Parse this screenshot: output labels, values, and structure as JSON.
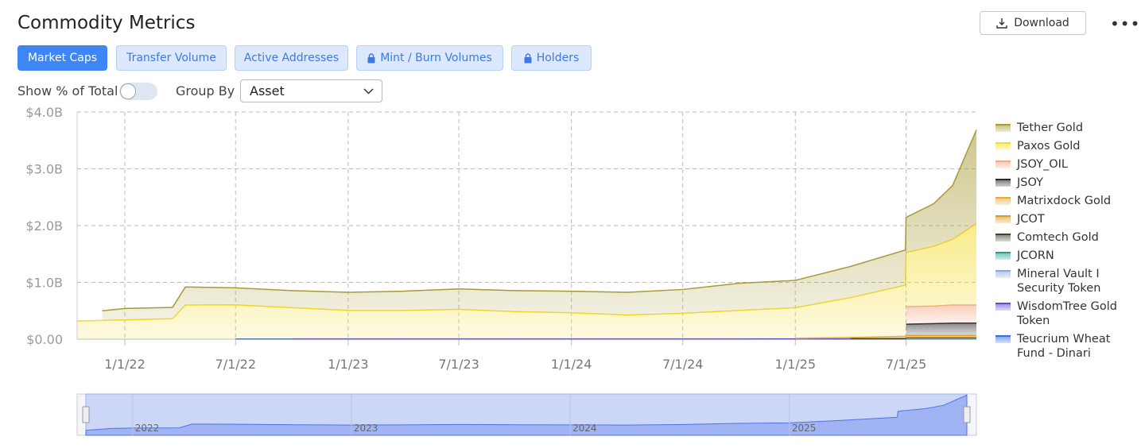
{
  "header": {
    "title": "Commodity Metrics",
    "download": "Download",
    "tabs": [
      "Market Caps",
      "Transfer Volume",
      "Active Addresses",
      "Mint / Burn Volumes",
      "Holders"
    ],
    "toggle_label": "Show % of Total",
    "group_by_label": "Group By",
    "group_by_value": "Asset"
  },
  "chart_data": {
    "type": "stacked_area",
    "x": [
      "2021-10-15",
      "2021-11-25",
      "2022-01-01",
      "2022-03-20",
      "2022-04-10",
      "2022-07-01",
      "2022-10-01",
      "2023-01-01",
      "2023-04-01",
      "2023-07-01",
      "2023-10-01",
      "2024-01-01",
      "2024-04-01",
      "2024-07-01",
      "2024-10-01",
      "2025-01-01",
      "2025-04-01",
      "2025-06-30",
      "2025-07-01",
      "2025-08-15",
      "2025-09-15",
      "2025-10-24"
    ],
    "xlim": [
      "2021-10-15",
      "2025-10-24"
    ],
    "xticks": [
      {
        "value": "2022-01-01",
        "label": "1/1/22"
      },
      {
        "value": "2022-07-01",
        "label": "7/1/22"
      },
      {
        "value": "2023-01-01",
        "label": "1/1/23"
      },
      {
        "value": "2023-07-01",
        "label": "7/1/23"
      },
      {
        "value": "2024-01-01",
        "label": "1/1/24"
      },
      {
        "value": "2024-07-01",
        "label": "7/1/24"
      },
      {
        "value": "2025-01-01",
        "label": "1/1/25"
      },
      {
        "value": "2025-07-01",
        "label": "7/1/25"
      }
    ],
    "ylim": [
      0,
      4
    ],
    "yticks": [
      {
        "value": 0,
        "label": "$0.00"
      },
      {
        "value": 1,
        "label": "$1.0B"
      },
      {
        "value": 2,
        "label": "$2.0B"
      },
      {
        "value": 3,
        "label": "$3.0B"
      },
      {
        "value": 4,
        "label": "$4.0B"
      }
    ],
    "grid": true,
    "series": [
      {
        "name": "Tether Gold",
        "color": "#a89a34",
        "values": [
          null,
          0.17,
          0.2,
          0.2,
          0.32,
          0.3,
          0.3,
          0.32,
          0.34,
          0.36,
          0.37,
          0.38,
          0.4,
          0.42,
          0.48,
          0.48,
          0.55,
          0.62,
          0.62,
          0.75,
          0.95,
          1.65
        ]
      },
      {
        "name": "Paxos Gold",
        "color": "#f4dc2c",
        "values": [
          0.32,
          0.33,
          0.34,
          0.36,
          0.6,
          0.6,
          0.55,
          0.5,
          0.5,
          0.52,
          0.48,
          0.46,
          0.42,
          0.45,
          0.5,
          0.54,
          0.7,
          0.9,
          0.95,
          1.05,
          1.15,
          1.43
        ]
      },
      {
        "name": "JSOY_OIL",
        "color": "#f4a989",
        "values": [
          null,
          null,
          null,
          null,
          null,
          null,
          null,
          null,
          null,
          null,
          null,
          null,
          null,
          null,
          null,
          null,
          null,
          null,
          0.31,
          0.31,
          0.32,
          0.32
        ]
      },
      {
        "name": "JSOY",
        "color": "#2a2a2a",
        "values": [
          null,
          null,
          null,
          null,
          null,
          null,
          null,
          null,
          null,
          null,
          null,
          null,
          null,
          null,
          null,
          null,
          null,
          null,
          0.2,
          0.21,
          0.22,
          0.22
        ]
      },
      {
        "name": "Matrixdock Gold",
        "color": "#e6a93c",
        "values": [
          null,
          null,
          null,
          null,
          null,
          null,
          null,
          null,
          null,
          null,
          null,
          null,
          null,
          null,
          null,
          0.01,
          0.02,
          0.03,
          0.03,
          0.03,
          0.03,
          0.03
        ]
      },
      {
        "name": "JCOT",
        "color": "#d49a2a",
        "values": [
          null,
          null,
          null,
          null,
          null,
          null,
          null,
          null,
          null,
          null,
          null,
          null,
          null,
          null,
          null,
          null,
          null,
          0.01,
          0.01,
          0.01,
          0.01,
          0.01
        ]
      },
      {
        "name": "Comtech Gold",
        "color": "#3e4030",
        "values": [
          null,
          null,
          null,
          null,
          null,
          null,
          null,
          null,
          null,
          null,
          null,
          null,
          null,
          null,
          null,
          null,
          0.005,
          0.005,
          0.005,
          0.005,
          0.005,
          0.005
        ]
      },
      {
        "name": "JCORN",
        "color": "#2a9d8f",
        "values": [
          null,
          null,
          null,
          null,
          null,
          null,
          null,
          null,
          null,
          null,
          null,
          null,
          null,
          null,
          null,
          null,
          null,
          null,
          0.01,
          0.01,
          0.01,
          0.01
        ]
      },
      {
        "name": "Mineral Vault I Security Token",
        "color": "#8fa6d6",
        "values": [
          null,
          null,
          null,
          null,
          null,
          null,
          null,
          null,
          null,
          null,
          null,
          null,
          null,
          null,
          null,
          null,
          null,
          null,
          0.004,
          0.004,
          0.004,
          0.004
        ]
      },
      {
        "name": "WisdomTree Gold Token",
        "color": "#5b4fcf",
        "values": [
          null,
          null,
          null,
          null,
          null,
          null,
          0.002,
          0.002,
          0.002,
          0.002,
          0.002,
          0.002,
          0.002,
          0.002,
          0.002,
          0.002,
          0.002,
          0.002,
          0.002,
          0.002,
          0.002,
          0.002
        ]
      },
      {
        "name": "Teucrium Wheat Fund - Dinari",
        "color": "#3b6fe0",
        "values": [
          null,
          null,
          null,
          null,
          null,
          0.003,
          0.003,
          0.003,
          0.003,
          0.003,
          0.003,
          0.003,
          0.003,
          0.003,
          0.003,
          0.003,
          0.003,
          0.003,
          0.003,
          0.003,
          0.003,
          0.003
        ]
      }
    ],
    "navigator_labels": [
      "2022",
      "2023",
      "2024",
      "2025"
    ],
    "navigator_label_dates": [
      "2022-01-01",
      "2023-01-01",
      "2024-01-01",
      "2025-01-01"
    ]
  }
}
